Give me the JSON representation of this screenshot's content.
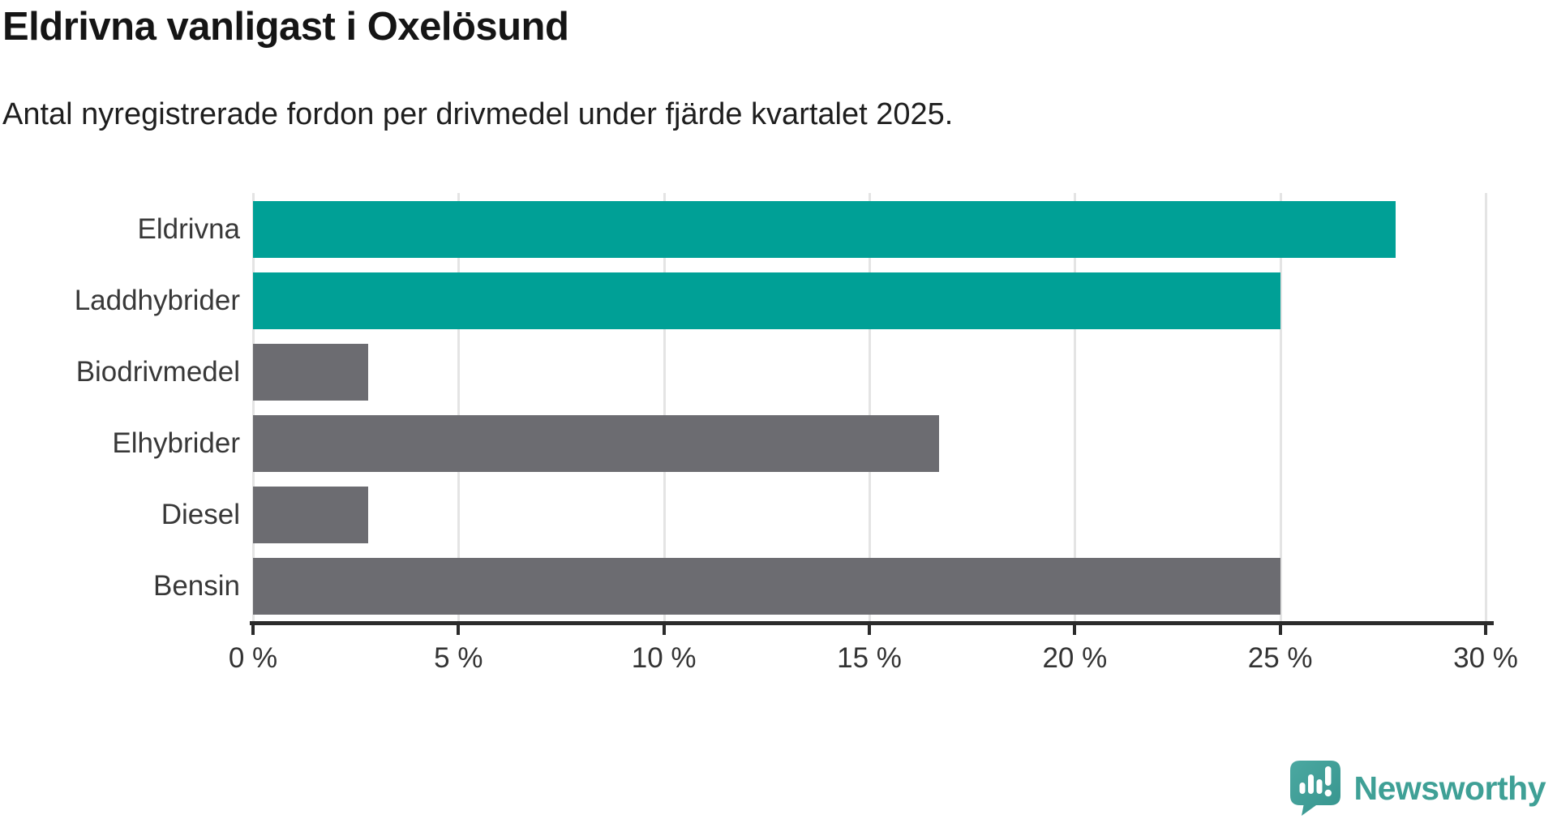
{
  "chart_data": {
    "type": "bar",
    "orientation": "horizontal",
    "title": "Eldrivna vanligast i Oxelösund",
    "subtitle": "Antal nyregistrerade fordon per drivmedel under fjärde kvartalet 2025.",
    "categories": [
      "Eldrivna",
      "Laddhybrider",
      "Biodrivmedel",
      "Elhybrider",
      "Diesel",
      "Bensin"
    ],
    "values": [
      27.8,
      25,
      2.8,
      16.7,
      2.8,
      25
    ],
    "unit": "%",
    "bar_colors": [
      "#00A096",
      "#00A096",
      "#6C6C71",
      "#6C6C71",
      "#6C6C71",
      "#6C6C71"
    ],
    "highlight_color": "#00A096",
    "base_color": "#6C6C71",
    "xlabel": "",
    "ylabel": "",
    "xlim": [
      0,
      30
    ],
    "xticks": [
      0,
      5,
      10,
      15,
      20,
      25,
      30
    ],
    "xtick_labels": [
      "0 %",
      "5 %",
      "10 %",
      "15 %",
      "20 %",
      "25 %",
      "30 %"
    ],
    "grid": true,
    "legend": "none"
  },
  "colors": {
    "title": "#151515",
    "subtitle": "#1E1E1E",
    "axis": "#2B2B2B",
    "tick_label": "#333333",
    "category_label": "#383838",
    "gridline": "#E4E4E4",
    "background": "#FFFFFF"
  },
  "footer": {
    "brand": "Newsworthy",
    "brand_color": "#3FA096",
    "icon": "newsworthy-logo-icon",
    "icon_bubble_color": "#45A39B",
    "icon_bubble_shade": "#37958E"
  }
}
